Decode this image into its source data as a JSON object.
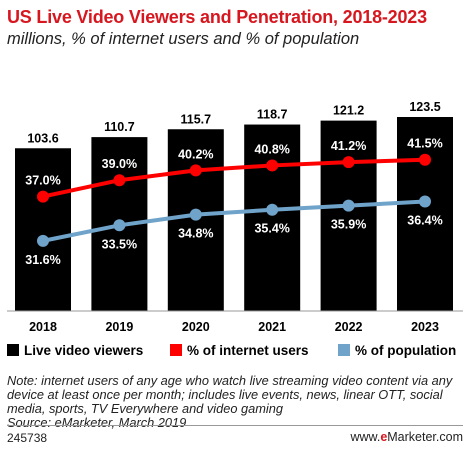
{
  "chart_data": {
    "type": "bar",
    "title": "US Live Video Viewers and Penetration, 2018-2023",
    "subtitle": "millions, % of internet users and % of population",
    "categories": [
      "2018",
      "2019",
      "2020",
      "2021",
      "2022",
      "2023"
    ],
    "series": [
      {
        "name": "Live video viewers",
        "type": "bar",
        "color": "#000000",
        "values": [
          103.6,
          110.7,
          115.7,
          118.7,
          121.2,
          123.5
        ],
        "labels": [
          "103.6",
          "110.7",
          "115.7",
          "118.7",
          "121.2",
          "123.5"
        ]
      },
      {
        "name": "% of internet users",
        "type": "line",
        "color": "#ff0000",
        "values": [
          37.0,
          39.0,
          40.2,
          40.8,
          41.2,
          41.5
        ],
        "labels": [
          "37.0%",
          "39.0%",
          "40.2%",
          "40.8%",
          "41.2%",
          "41.5%"
        ]
      },
      {
        "name": "% of population",
        "type": "line",
        "color": "#6fa3c9",
        "values": [
          31.6,
          33.5,
          34.8,
          35.4,
          35.9,
          36.4
        ],
        "labels": [
          "31.6%",
          "33.5%",
          "34.8%",
          "35.4%",
          "35.9%",
          "36.4%"
        ]
      }
    ],
    "legend_position": "bottom"
  },
  "note": "Note: internet users of any age who watch live streaming video content via any device at least once per month; includes live events, news, linear OTT, social media, sports, TV Everywhere and video gaming",
  "source": "Source: eMarketer, March 2019",
  "chart_id": "245738",
  "logo": {
    "prefix": "www.",
    "brand_e": "e",
    "brand_rest": "Marketer",
    "suffix": ".com"
  }
}
